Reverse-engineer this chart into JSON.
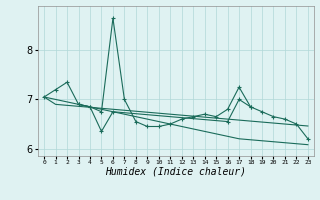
{
  "xlabel": "Humidex (Indice chaleur)",
  "line_color": "#1a6b5a",
  "bg_color": "#dff2f2",
  "grid_color": "#b0d8d8",
  "ylim": [
    5.85,
    8.9
  ],
  "yticks": [
    6,
    7,
    8
  ],
  "xlim": [
    -0.5,
    23.5
  ],
  "y_main": [
    7.05,
    7.2,
    7.35,
    6.9,
    6.85,
    6.75,
    8.65,
    7.0,
    6.55,
    6.45,
    6.45,
    6.5,
    6.6,
    6.65,
    6.7,
    6.65,
    6.8,
    7.25,
    6.85,
    6.75,
    6.65,
    6.6,
    6.5,
    6.2
  ],
  "y_line2": [
    7.05,
    6.9,
    6.88,
    6.86,
    6.84,
    6.82,
    6.8,
    6.78,
    6.76,
    6.74,
    6.72,
    6.7,
    6.68,
    6.66,
    6.64,
    6.62,
    6.6,
    6.58,
    6.56,
    6.54,
    6.52,
    6.5,
    6.48,
    6.46
  ],
  "y_line3": [
    7.05,
    7.0,
    6.95,
    6.9,
    6.85,
    6.8,
    6.75,
    6.7,
    6.65,
    6.6,
    6.55,
    6.5,
    6.45,
    6.4,
    6.35,
    6.3,
    6.25,
    6.2,
    6.18,
    6.16,
    6.14,
    6.12,
    6.1,
    6.08
  ],
  "y_line4_x": [
    3,
    4,
    5,
    6,
    16,
    17,
    18
  ],
  "y_line4_y": [
    6.9,
    6.85,
    6.35,
    6.75,
    6.55,
    7.0,
    6.85
  ]
}
